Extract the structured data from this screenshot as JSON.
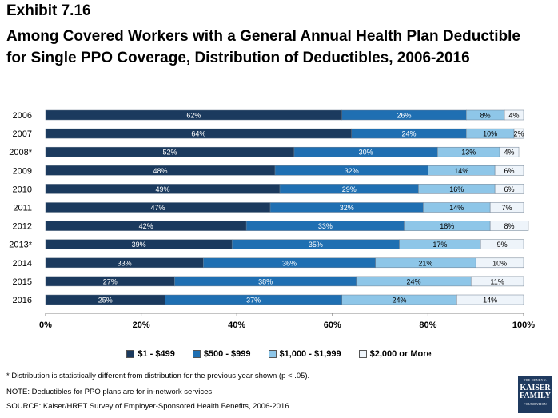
{
  "exhibit_label": "Exhibit 7.16",
  "chart_data": {
    "type": "bar",
    "orientation": "horizontal",
    "stacked": true,
    "title": "Among Covered Workers with a General Annual Health Plan Deductible for Single PPO Coverage, Distribution of Deductibles, 2006-2016",
    "categories": [
      "2006",
      "2007",
      "2008*",
      "2009",
      "2010",
      "2011",
      "2012",
      "2013*",
      "2014",
      "2015",
      "2016"
    ],
    "series": [
      {
        "name": "$1 - $499",
        "color": "#1b3a5e",
        "label_color": "#ffffff",
        "values": [
          62,
          64,
          52,
          48,
          49,
          47,
          42,
          39,
          33,
          27,
          25
        ]
      },
      {
        "name": "$500 - $999",
        "color": "#1f6fb2",
        "label_color": "#ffffff",
        "values": [
          26,
          24,
          30,
          32,
          29,
          32,
          33,
          35,
          36,
          38,
          37
        ]
      },
      {
        "name": "$1,000 - $1,999",
        "color": "#8ec6e8",
        "label_color": "#000000",
        "values": [
          8,
          10,
          13,
          14,
          16,
          14,
          18,
          17,
          21,
          24,
          24
        ]
      },
      {
        "name": "$2,000 or More",
        "color": "#eef4fa",
        "label_color": "#000000",
        "values": [
          4,
          2,
          4,
          6,
          6,
          7,
          8,
          9,
          10,
          11,
          14
        ]
      }
    ],
    "xlim": [
      0,
      100
    ],
    "xticks": [
      "0%",
      "20%",
      "40%",
      "60%",
      "80%",
      "100%"
    ],
    "legend_position": "bottom"
  },
  "notes": {
    "footnote": "* Distribution is statistically different from distribution for the previous year shown (p < .05).",
    "note": "NOTE:  Deductibles for PPO plans are for in-network services.",
    "source": "SOURCE:  Kaiser/HRET Survey of Employer-Sponsored Health Benefits, 2006-2016."
  },
  "logo": {
    "line1": "THE HENRY J.",
    "line2": "KAISER",
    "line3": "FAMILY",
    "line4": "FOUNDATION"
  }
}
